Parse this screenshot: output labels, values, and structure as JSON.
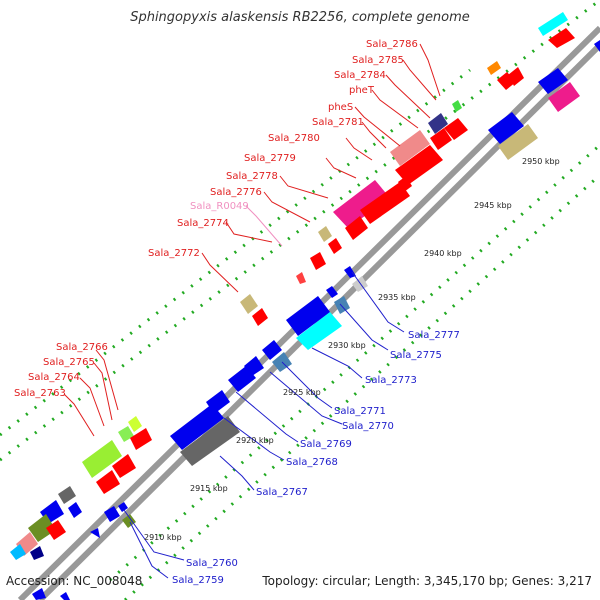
{
  "title": "Sphingopyxis alaskensis RB2256, complete genome",
  "footer": {
    "accession": "Accession: NC_008048",
    "topology": "Topology: circular; Length: 3,345,170 bp; Genes: 3,217"
  },
  "ticks": [
    "2910 kbp",
    "2915 kbp",
    "2920 kbp",
    "2925 kbp",
    "2930 kbp",
    "2935 kbp",
    "2940 kbp",
    "2945 kbp",
    "2950 kbp"
  ],
  "labels_upper": [
    {
      "text": "Sala_2786",
      "color": "#e02020"
    },
    {
      "text": "Sala_2785",
      "color": "#e02020"
    },
    {
      "text": "Sala_2784",
      "color": "#e02020"
    },
    {
      "text": "pheT",
      "color": "#e02020"
    },
    {
      "text": "pheS",
      "color": "#e02020"
    },
    {
      "text": "Sala_2781",
      "color": "#e02020"
    },
    {
      "text": "Sala_2780",
      "color": "#e02020"
    },
    {
      "text": "Sala_2779",
      "color": "#e02020"
    },
    {
      "text": "Sala_2778",
      "color": "#e02020"
    },
    {
      "text": "Sala_2776",
      "color": "#e02020"
    },
    {
      "text": "Sala_R0049",
      "color": "#f090c0"
    },
    {
      "text": "Sala_2774",
      "color": "#e02020"
    },
    {
      "text": "Sala_2772",
      "color": "#e02020"
    },
    {
      "text": "Sala_2766",
      "color": "#e02020"
    },
    {
      "text": "Sala_2765",
      "color": "#e02020"
    },
    {
      "text": "Sala_2764",
      "color": "#e02020"
    },
    {
      "text": "Sala_2763",
      "color": "#e02020"
    }
  ],
  "labels_lower": [
    {
      "text": "Sala_2777",
      "color": "#2020cc"
    },
    {
      "text": "Sala_2775",
      "color": "#2020cc"
    },
    {
      "text": "Sala_2773",
      "color": "#2020cc"
    },
    {
      "text": "Sala_2771",
      "color": "#2020cc"
    },
    {
      "text": "Sala_2770",
      "color": "#2020cc"
    },
    {
      "text": "Sala_2769",
      "color": "#2020cc"
    },
    {
      "text": "Sala_2768",
      "color": "#2020cc"
    },
    {
      "text": "Sala_2767",
      "color": "#2020cc"
    },
    {
      "text": "Sala_2760",
      "color": "#2020cc"
    },
    {
      "text": "Sala_2759",
      "color": "#2020cc"
    }
  ],
  "colors": {
    "forward": "#ff0000",
    "reverse": "#0000ee",
    "backbone": "#999999",
    "tick_dots": "#22aa22"
  }
}
